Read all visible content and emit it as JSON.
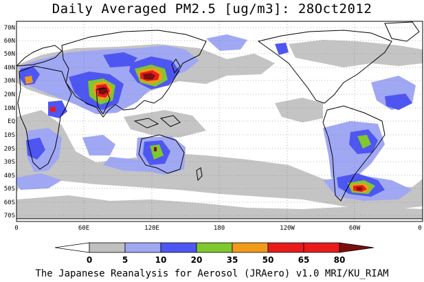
{
  "title": "Daily Averaged PM2.5 [ug/m3]: 28Oct2012",
  "footer": "The Japanese Reanalysis for Aerosol (JRAero) v1.0 MRI/KU_RIAM",
  "lat_labels": [
    "70N",
    "60N",
    "50N",
    "40N",
    "30N",
    "20N",
    "10N",
    "EQ",
    "10S",
    "20S",
    "30S",
    "40S",
    "50S",
    "60S",
    "70S"
  ],
  "lon_labels": [
    "0",
    "60E",
    "120E",
    "180",
    "120W",
    "60W",
    "0"
  ],
  "colorbar": {
    "levels": [
      "0",
      "5",
      "10",
      "20",
      "35",
      "50",
      "65",
      "80"
    ],
    "colors": [
      "#ffffff",
      "#c0c0c0",
      "#a0a8f4",
      "#4e56f2",
      "#7fc82e",
      "#f29a1a",
      "#e81b1b",
      "#7a0e0e"
    ]
  }
}
